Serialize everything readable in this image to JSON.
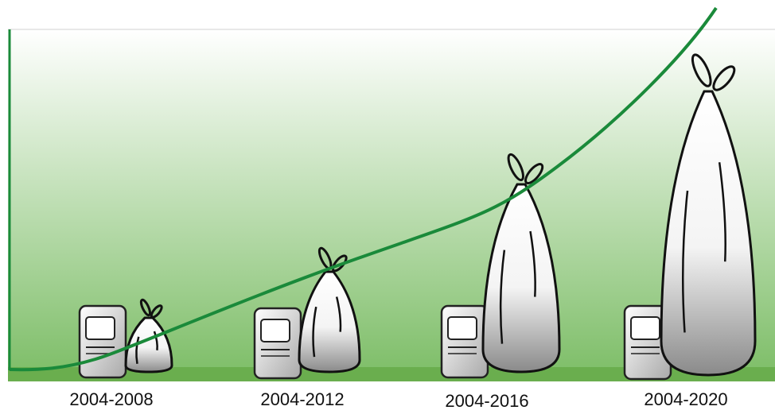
{
  "labels": [
    "2004-2008",
    "2004-2012",
    "2004-2016",
    "2004-2020"
  ]
}
